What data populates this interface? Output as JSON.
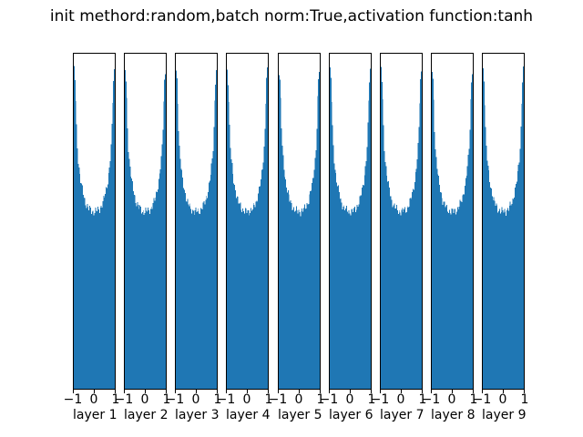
{
  "figure": {
    "title": "init methord:random,batch norm:True,activation function:tanh",
    "background_color": "#ffffff"
  },
  "chart_data": {
    "type": "bar",
    "subtype": "histogram-row",
    "title": "init methord:random,batch norm:True,activation function:tanh",
    "description": "9 side-by-side histograms of per-layer activation values (tanh, batch norm on); U-shaped distributions with mass piled near -1 and +1, identical across layers",
    "panels": [
      {
        "xlabel": "layer 1"
      },
      {
        "xlabel": "layer 2"
      },
      {
        "xlabel": "layer 3"
      },
      {
        "xlabel": "layer 4"
      },
      {
        "xlabel": "layer 5"
      },
      {
        "xlabel": "layer 6"
      },
      {
        "xlabel": "layer 7"
      },
      {
        "xlabel": "layer 8"
      },
      {
        "xlabel": "layer 9"
      }
    ],
    "xlim": [
      -1,
      1
    ],
    "x_ticks": [
      -1,
      0,
      1
    ],
    "x_tick_labels": [
      "−1",
      "0",
      "1"
    ],
    "y_axis": "frequency (no ticks, no label)",
    "bins": 50,
    "envelope_frac": [
      0.95,
      0.92,
      0.86,
      0.78,
      0.72,
      0.685,
      0.66,
      0.64,
      0.622,
      0.607,
      0.594,
      0.582,
      0.572,
      0.563,
      0.556,
      0.55,
      0.545,
      0.541,
      0.537,
      0.535,
      0.533,
      0.531,
      0.53,
      0.529,
      0.529,
      0.529,
      0.529,
      0.53,
      0.531,
      0.533,
      0.535,
      0.537,
      0.541,
      0.545,
      0.55,
      0.556,
      0.563,
      0.572,
      0.582,
      0.594,
      0.607,
      0.622,
      0.64,
      0.66,
      0.685,
      0.72,
      0.78,
      0.86,
      0.92,
      0.95
    ],
    "jitter": {
      "amplitude": 0.009,
      "seeds": [
        0.8,
        1.7,
        2.9,
        4.1,
        5.3,
        0.4,
        1.2,
        2.3,
        3.5
      ]
    },
    "colors": {
      "bar": "#1f77b4",
      "spine": "#000000",
      "text": "#000000"
    }
  }
}
